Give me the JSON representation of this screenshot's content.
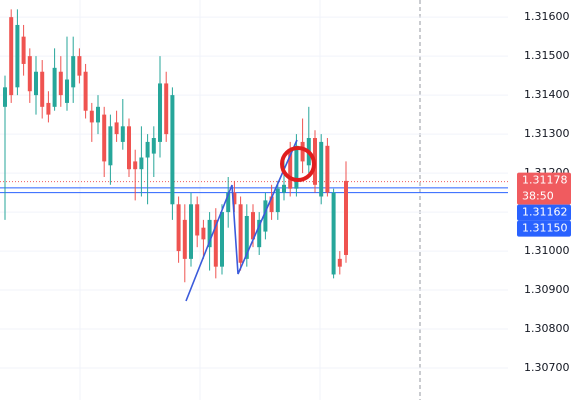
{
  "chart_data": {
    "type": "candlestick",
    "ylim": [
      1.30618,
      1.31644
    ],
    "yticks": [
      {
        "value": 1.307,
        "label": "1.30700"
      },
      {
        "value": 1.308,
        "label": "1.30800"
      },
      {
        "value": 1.309,
        "label": "1.30900"
      },
      {
        "value": 1.31,
        "label": "1.31000"
      },
      {
        "value": 1.311,
        "label": "1.31100"
      },
      {
        "value": 1.312,
        "label": "1.31200"
      },
      {
        "value": 1.313,
        "label": "1.31300"
      },
      {
        "value": 1.314,
        "label": "1.31400"
      },
      {
        "value": 1.315,
        "label": "1.31500"
      },
      {
        "value": 1.316,
        "label": "1.31600"
      }
    ],
    "grid": true,
    "up_color": "#26a69a",
    "down_color": "#ef5350",
    "candles": {
      "open": [
        1.3137,
        1.316,
        1.3142,
        1.3155,
        1.315,
        1.314,
        1.3146,
        1.3138,
        1.3137,
        1.3146,
        1.3138,
        1.3142,
        1.315,
        1.3146,
        1.3136,
        1.3133,
        1.3135,
        1.3122,
        1.3133,
        1.3128,
        1.3132,
        1.3123,
        1.3121,
        1.3124,
        1.3125,
        1.3128,
        1.3143,
        1.3112,
        1.3112,
        1.3108,
        1.3098,
        1.3112,
        1.3106,
        1.3101,
        1.3108,
        1.3096,
        1.311,
        1.3115,
        1.3112,
        1.3098,
        1.311,
        1.3101,
        1.3105,
        1.3114,
        1.311,
        1.3115,
        1.3126,
        1.3116,
        1.3128,
        1.3122,
        1.3129,
        1.3114,
        1.3127,
        1.3094,
        1.3098,
        1.3118
      ],
      "high": [
        1.3145,
        1.3162,
        1.3162,
        1.3158,
        1.3152,
        1.315,
        1.3149,
        1.3141,
        1.3152,
        1.315,
        1.3155,
        1.3155,
        1.3152,
        1.3148,
        1.3138,
        1.314,
        1.3137,
        1.3135,
        1.3136,
        1.3139,
        1.3134,
        1.3126,
        1.3132,
        1.313,
        1.3132,
        1.315,
        1.3146,
        1.3142,
        1.3114,
        1.3112,
        1.3115,
        1.3114,
        1.3108,
        1.311,
        1.3111,
        1.3112,
        1.3119,
        1.3118,
        1.3114,
        1.3112,
        1.3112,
        1.311,
        1.3115,
        1.3117,
        1.3118,
        1.3124,
        1.3128,
        1.313,
        1.3134,
        1.3137,
        1.3131,
        1.313,
        1.3129,
        1.3116,
        1.31,
        1.3123
      ],
      "low": [
        1.3108,
        1.3138,
        1.314,
        1.3145,
        1.3138,
        1.3135,
        1.3134,
        1.3133,
        1.3136,
        1.3137,
        1.3136,
        1.3138,
        1.3143,
        1.3134,
        1.3128,
        1.313,
        1.3119,
        1.3117,
        1.3128,
        1.3126,
        1.3119,
        1.3113,
        1.3114,
        1.3112,
        1.3119,
        1.3124,
        1.3128,
        1.3108,
        1.3097,
        1.3092,
        1.3096,
        1.3101,
        1.3098,
        1.3095,
        1.3093,
        1.3094,
        1.3106,
        1.311,
        1.3095,
        1.3096,
        1.3101,
        1.3099,
        1.3103,
        1.3108,
        1.3108,
        1.3113,
        1.3114,
        1.3114,
        1.312,
        1.312,
        1.3115,
        1.3112,
        1.3114,
        1.3093,
        1.3094,
        1.3097
      ],
      "close": [
        1.3142,
        1.314,
        1.3158,
        1.3148,
        1.3141,
        1.3146,
        1.3137,
        1.3135,
        1.3147,
        1.314,
        1.3144,
        1.315,
        1.3145,
        1.3136,
        1.3133,
        1.3137,
        1.3123,
        1.3132,
        1.313,
        1.3132,
        1.3121,
        1.3121,
        1.3124,
        1.3128,
        1.3129,
        1.3143,
        1.313,
        1.314,
        1.31,
        1.3098,
        1.3112,
        1.3104,
        1.3103,
        1.3108,
        1.3096,
        1.311,
        1.3115,
        1.3112,
        1.3097,
        1.3109,
        1.3103,
        1.3108,
        1.3113,
        1.311,
        1.3116,
        1.3117,
        1.3116,
        1.3127,
        1.3123,
        1.3129,
        1.3117,
        1.3128,
        1.3115,
        1.3115,
        1.3096,
        1.3099
      ]
    },
    "price_lines": [
      {
        "value": 1.31178,
        "label": "1.31178",
        "countdown": "38:50",
        "color": "#f05b5f",
        "style": "dotted"
      },
      {
        "value": 1.31162,
        "label": "1.31162",
        "color": "#2962ff",
        "style": "solid"
      },
      {
        "value": 1.3115,
        "label": "1.31150",
        "color": "#2962ff",
        "style": "solid"
      }
    ]
  }
}
